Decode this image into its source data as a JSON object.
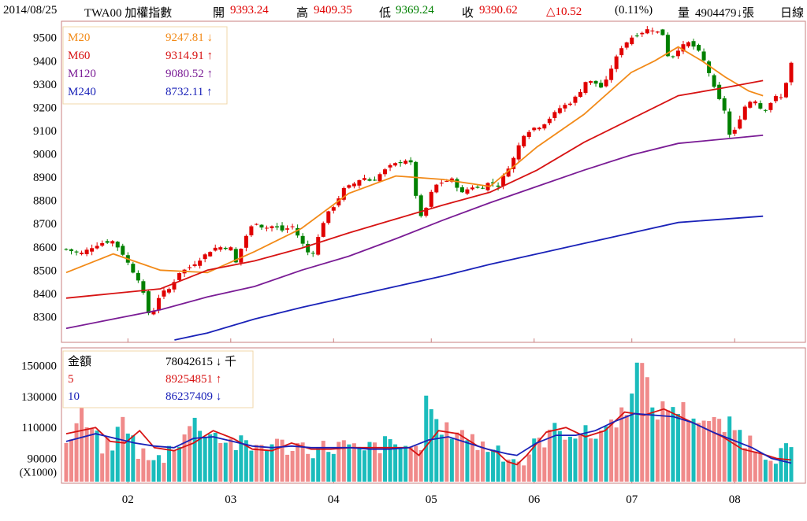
{
  "header": {
    "date": "2014/08/25",
    "symbol": "TWA00 加權指數",
    "open_label": "開",
    "open": "9393.24",
    "high_label": "高",
    "high": "9409.35",
    "low_label": "低",
    "low": "9369.24",
    "close_label": "收",
    "close": "9390.62",
    "change": "△10.52",
    "change_pct": "(0.11%)",
    "volume_label": "量",
    "volume": "4904479↓張",
    "period": "日線",
    "up_color": "#e00000",
    "down_color": "#008000"
  },
  "chart_data": [
    {
      "type": "candlestick",
      "ylim": [
        8200,
        9560
      ],
      "y_ticks": [
        8300,
        8400,
        8500,
        8600,
        8700,
        8800,
        8900,
        9000,
        9100,
        9200,
        9300,
        9400,
        9500
      ],
      "legend": [
        {
          "name": "M20",
          "value": "9247.81",
          "arrow": "↓",
          "color": "#f28a18"
        },
        {
          "name": "M60",
          "value": "9314.91",
          "arrow": "↑",
          "color": "#d71313"
        },
        {
          "name": "M120",
          "value": "9080.52",
          "arrow": "↑",
          "color": "#7a1c95"
        },
        {
          "name": "M240",
          "value": "8732.11",
          "arrow": "↑",
          "color": "#1a22b8"
        }
      ],
      "x_ticks": [
        "02",
        "03",
        "04",
        "05",
        "06",
        "07",
        "08"
      ],
      "x_tick_positions": [
        12,
        32,
        52,
        71,
        91,
        110,
        130
      ],
      "n": 142,
      "close_anchors": [
        [
          0,
          8590
        ],
        [
          3,
          8570
        ],
        [
          6,
          8605
        ],
        [
          8,
          8620
        ],
        [
          10,
          8625
        ],
        [
          12,
          8570
        ],
        [
          14,
          8500
        ],
        [
          16,
          8440
        ],
        [
          17,
          8330
        ],
        [
          18,
          8300
        ],
        [
          20,
          8400
        ],
        [
          22,
          8420
        ],
        [
          24,
          8490
        ],
        [
          26,
          8510
        ],
        [
          28,
          8540
        ],
        [
          30,
          8575
        ],
        [
          32,
          8600
        ],
        [
          35,
          8595
        ],
        [
          36,
          8530
        ],
        [
          38,
          8640
        ],
        [
          40,
          8710
        ],
        [
          42,
          8680
        ],
        [
          44,
          8690
        ],
        [
          46,
          8670
        ],
        [
          48,
          8690
        ],
        [
          50,
          8620
        ],
        [
          52,
          8555
        ],
        [
          53,
          8610
        ],
        [
          55,
          8730
        ],
        [
          57,
          8780
        ],
        [
          59,
          8850
        ],
        [
          61,
          8870
        ],
        [
          63,
          8900
        ],
        [
          65,
          8880
        ],
        [
          67,
          8920
        ],
        [
          69,
          8950
        ],
        [
          71,
          8965
        ],
        [
          73,
          8980
        ],
        [
          74,
          8860
        ],
        [
          75,
          8720
        ],
        [
          76,
          8740
        ],
        [
          78,
          8860
        ],
        [
          80,
          8880
        ],
        [
          82,
          8890
        ],
        [
          84,
          8830
        ],
        [
          86,
          8860
        ],
        [
          88,
          8850
        ],
        [
          90,
          8880
        ],
        [
          92,
          8860
        ],
        [
          93,
          8910
        ],
        [
          95,
          8980
        ],
        [
          97,
          9080
        ],
        [
          99,
          9110
        ],
        [
          101,
          9120
        ],
        [
          103,
          9160
        ],
        [
          105,
          9200
        ],
        [
          107,
          9220
        ],
        [
          109,
          9260
        ],
        [
          110,
          9310
        ],
        [
          112,
          9310
        ],
        [
          114,
          9280
        ],
        [
          116,
          9380
        ],
        [
          118,
          9460
        ],
        [
          120,
          9500
        ],
        [
          122,
          9520
        ],
        [
          124,
          9540
        ],
        [
          126,
          9520
        ],
        [
          127,
          9510
        ],
        [
          128,
          9400
        ],
        [
          130,
          9450
        ],
        [
          132,
          9480
        ],
        [
          134,
          9450
        ],
        [
          136,
          9380
        ],
        [
          138,
          9260
        ],
        [
          140,
          9180
        ],
        [
          141,
          9070
        ],
        [
          142,
          9100
        ],
        [
          144,
          9200
        ],
        [
          146,
          9240
        ],
        [
          148,
          9180
        ],
        [
          150,
          9230
        ],
        [
          151,
          9250
        ],
        [
          152,
          9240
        ],
        [
          154,
          9390
        ]
      ],
      "anchor_span": 154,
      "ma_points": {
        "M20": [
          [
            0,
            8490
          ],
          [
            10,
            8570
          ],
          [
            20,
            8500
          ],
          [
            30,
            8490
          ],
          [
            40,
            8580
          ],
          [
            50,
            8680
          ],
          [
            60,
            8830
          ],
          [
            70,
            8905
          ],
          [
            80,
            8890
          ],
          [
            90,
            8860
          ],
          [
            100,
            9030
          ],
          [
            110,
            9170
          ],
          [
            120,
            9350
          ],
          [
            125,
            9400
          ],
          [
            130,
            9460
          ],
          [
            135,
            9400
          ],
          [
            140,
            9330
          ],
          [
            145,
            9270
          ],
          [
            148,
            9250
          ]
        ],
        "M60": [
          [
            0,
            8380
          ],
          [
            10,
            8400
          ],
          [
            20,
            8420
          ],
          [
            30,
            8500
          ],
          [
            40,
            8540
          ],
          [
            50,
            8595
          ],
          [
            60,
            8660
          ],
          [
            70,
            8720
          ],
          [
            80,
            8780
          ],
          [
            90,
            8835
          ],
          [
            100,
            8930
          ],
          [
            110,
            9050
          ],
          [
            120,
            9150
          ],
          [
            130,
            9250
          ],
          [
            140,
            9285
          ],
          [
            148,
            9315
          ]
        ],
        "M120": [
          [
            0,
            8250
          ],
          [
            10,
            8290
          ],
          [
            20,
            8330
          ],
          [
            30,
            8385
          ],
          [
            40,
            8430
          ],
          [
            50,
            8500
          ],
          [
            60,
            8560
          ],
          [
            70,
            8635
          ],
          [
            80,
            8715
          ],
          [
            90,
            8790
          ],
          [
            100,
            8860
          ],
          [
            110,
            8930
          ],
          [
            120,
            8995
          ],
          [
            130,
            9045
          ],
          [
            148,
            9080
          ]
        ],
        "M240": [
          [
            23,
            8200
          ],
          [
            30,
            8230
          ],
          [
            40,
            8290
          ],
          [
            50,
            8340
          ],
          [
            60,
            8385
          ],
          [
            70,
            8430
          ],
          [
            80,
            8475
          ],
          [
            90,
            8525
          ],
          [
            100,
            8570
          ],
          [
            110,
            8615
          ],
          [
            120,
            8660
          ],
          [
            130,
            8705
          ],
          [
            148,
            8732
          ]
        ]
      }
    },
    {
      "type": "bar",
      "ylim": [
        75000,
        160000
      ],
      "y_ticks": [
        90000,
        110000,
        130000,
        150000
      ],
      "unit_label": "(X1000)",
      "legend": [
        {
          "name": "金額",
          "value": "78042615",
          "arrow": "↓",
          "suffix": "千",
          "color": "#000000"
        },
        {
          "name": "5",
          "value": "89254851",
          "arrow": "↑",
          "color": "#d71313"
        },
        {
          "name": "10",
          "value": "86237409",
          "arrow": "↓",
          "color": "#1a22b8"
        }
      ],
      "x_ticks": [
        "02",
        "03",
        "04",
        "05",
        "06",
        "07",
        "08"
      ],
      "bar_anchors": [
        [
          0,
          97000
        ],
        [
          3,
          118000
        ],
        [
          6,
          102000
        ],
        [
          9,
          95000
        ],
        [
          12,
          118000
        ],
        [
          14,
          97000
        ],
        [
          18,
          86000
        ],
        [
          22,
          99000
        ],
        [
          26,
          113000
        ],
        [
          30,
          106000
        ],
        [
          34,
          100000
        ],
        [
          38,
          96000
        ],
        [
          40,
          100000
        ],
        [
          44,
          98000
        ],
        [
          48,
          98000
        ],
        [
          52,
          96000
        ],
        [
          56,
          99000
        ],
        [
          60,
          93000
        ],
        [
          64,
          99000
        ],
        [
          68,
          97000
        ],
        [
          70,
          99000
        ],
        [
          72,
          93000
        ],
        [
          74,
          135000
        ],
        [
          76,
          105000
        ],
        [
          80,
          110000
        ],
        [
          84,
          99000
        ],
        [
          88,
          97000
        ],
        [
          90,
          93000
        ],
        [
          93,
          87000
        ],
        [
          96,
          99000
        ],
        [
          99,
          107000
        ],
        [
          103,
          108000
        ],
        [
          107,
          104000
        ],
        [
          110,
          110000
        ],
        [
          114,
          120000
        ],
        [
          117,
          155000
        ],
        [
          120,
          120000
        ],
        [
          124,
          124000
        ],
        [
          128,
          118000
        ],
        [
          132,
          112000
        ],
        [
          136,
          110000
        ],
        [
          140,
          100000
        ],
        [
          144,
          93000
        ],
        [
          148,
          95000
        ]
      ],
      "bar_span": 148,
      "ma_points": {
        "5": [
          [
            0,
            106000
          ],
          [
            6,
            110000
          ],
          [
            9,
            101000
          ],
          [
            12,
            100000
          ],
          [
            15,
            108000
          ],
          [
            18,
            97000
          ],
          [
            22,
            95000
          ],
          [
            26,
            100000
          ],
          [
            30,
            108000
          ],
          [
            34,
            103000
          ],
          [
            38,
            96000
          ],
          [
            42,
            95000
          ],
          [
            46,
            100000
          ],
          [
            50,
            96000
          ],
          [
            54,
            96000
          ],
          [
            58,
            97000
          ],
          [
            62,
            97000
          ],
          [
            66,
            97000
          ],
          [
            70,
            97000
          ],
          [
            72,
            92000
          ],
          [
            76,
            108000
          ],
          [
            80,
            106000
          ],
          [
            84,
            98000
          ],
          [
            88,
            94000
          ],
          [
            90,
            88000
          ],
          [
            92,
            86000
          ],
          [
            94,
            92000
          ],
          [
            98,
            107000
          ],
          [
            102,
            110000
          ],
          [
            106,
            104000
          ],
          [
            110,
            108000
          ],
          [
            114,
            120000
          ],
          [
            118,
            118000
          ],
          [
            122,
            122000
          ],
          [
            126,
            116000
          ],
          [
            130,
            110000
          ],
          [
            134,
            104000
          ],
          [
            138,
            96000
          ],
          [
            142,
            93000
          ],
          [
            145,
            90000
          ],
          [
            148,
            89000
          ]
        ],
        "10": [
          [
            0,
            101000
          ],
          [
            6,
            106000
          ],
          [
            10,
            103000
          ],
          [
            14,
            100000
          ],
          [
            18,
            98000
          ],
          [
            22,
            97000
          ],
          [
            26,
            103000
          ],
          [
            30,
            104000
          ],
          [
            34,
            101000
          ],
          [
            38,
            98000
          ],
          [
            42,
            97000
          ],
          [
            46,
            98000
          ],
          [
            50,
            97000
          ],
          [
            54,
            97000
          ],
          [
            58,
            97000
          ],
          [
            62,
            96000
          ],
          [
            66,
            96000
          ],
          [
            70,
            97000
          ],
          [
            74,
            102000
          ],
          [
            78,
            104000
          ],
          [
            82,
            100000
          ],
          [
            86,
            96000
          ],
          [
            90,
            93000
          ],
          [
            92,
            92000
          ],
          [
            96,
            100000
          ],
          [
            100,
            105000
          ],
          [
            104,
            105000
          ],
          [
            108,
            108000
          ],
          [
            112,
            114000
          ],
          [
            116,
            119000
          ],
          [
            120,
            118000
          ],
          [
            124,
            117000
          ],
          [
            128,
            113000
          ],
          [
            132,
            107000
          ],
          [
            136,
            102000
          ],
          [
            140,
            97000
          ],
          [
            144,
            90000
          ],
          [
            148,
            87000
          ]
        ]
      }
    }
  ]
}
